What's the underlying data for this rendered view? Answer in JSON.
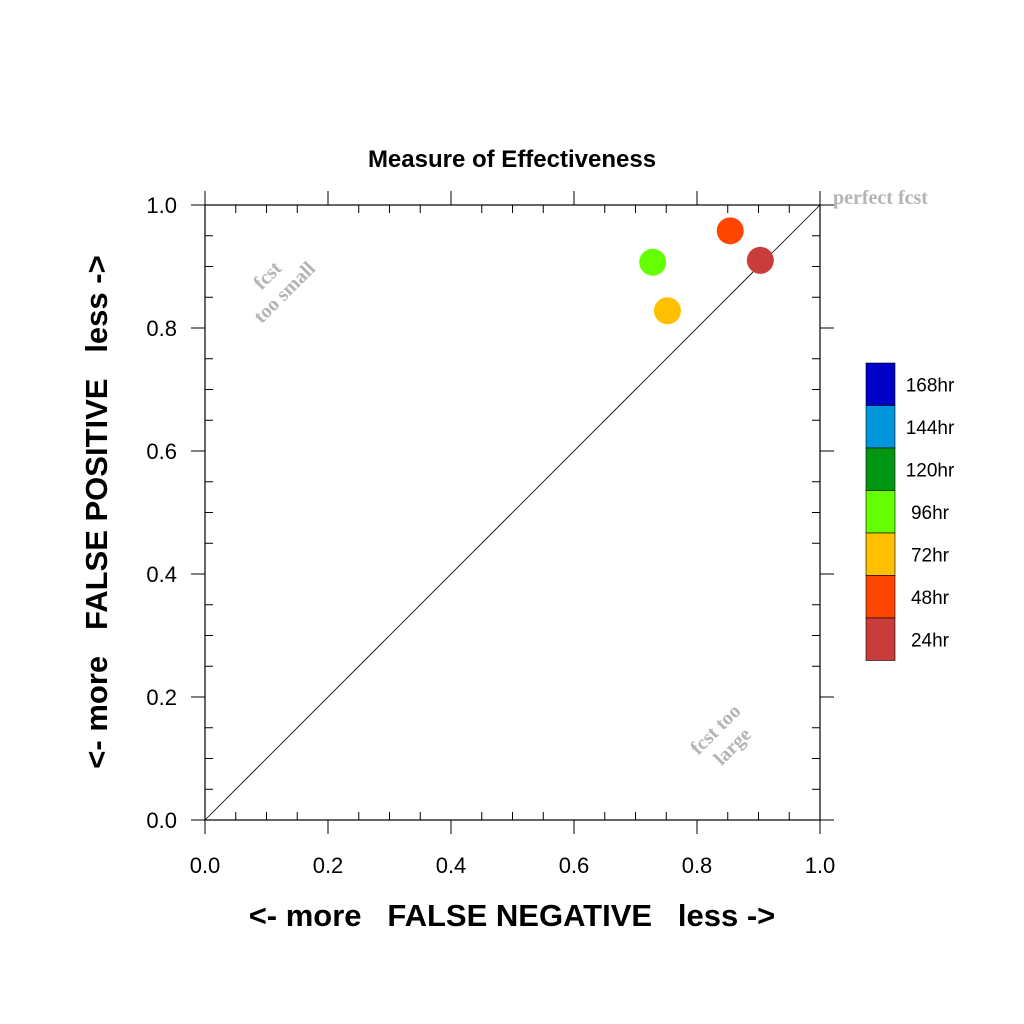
{
  "chart_data": {
    "type": "scatter",
    "title": "Measure of Effectiveness",
    "xlabel": "<- more   FALSE NEGATIVE   less ->",
    "ylabel": "<- more   FALSE POSITIVE   less ->",
    "xlim": [
      0.0,
      1.0
    ],
    "ylim": [
      0.0,
      1.0
    ],
    "x_ticks": [
      "0.0",
      "0.2",
      "0.4",
      "0.6",
      "0.8",
      "1.0"
    ],
    "y_ticks": [
      "0.0",
      "0.2",
      "0.4",
      "0.6",
      "0.8",
      "1.0"
    ],
    "grid": false,
    "reference_line": {
      "x": [
        0.0,
        1.0
      ],
      "y": [
        0.0,
        1.0
      ]
    },
    "annotations": {
      "perfect": "perfect fcst",
      "too_small_1": "fcst",
      "too_small_2": "too small",
      "too_large_1": "fcst too",
      "too_large_2": "large"
    },
    "series": [
      {
        "name": "24hr",
        "color": "#c83c3c",
        "x": 0.903,
        "y": 0.91
      },
      {
        "name": "48hr",
        "color": "#ff4500",
        "x": 0.854,
        "y": 0.958
      },
      {
        "name": "72hr",
        "color": "#ffc000",
        "x": 0.752,
        "y": 0.828
      },
      {
        "name": "96hr",
        "color": "#64ff00",
        "x": 0.728,
        "y": 0.907
      }
    ],
    "legend": {
      "position": "right",
      "entries": [
        {
          "label": "168hr",
          "color": "#0000c8"
        },
        {
          "label": "144hr",
          "color": "#0096dc"
        },
        {
          "label": "120hr",
          "color": "#009614"
        },
        {
          "label": "96hr",
          "color": "#64ff00"
        },
        {
          "label": "72hr",
          "color": "#ffc000"
        },
        {
          "label": "48hr",
          "color": "#ff4500"
        },
        {
          "label": "24hr",
          "color": "#c83c3c"
        }
      ]
    }
  }
}
